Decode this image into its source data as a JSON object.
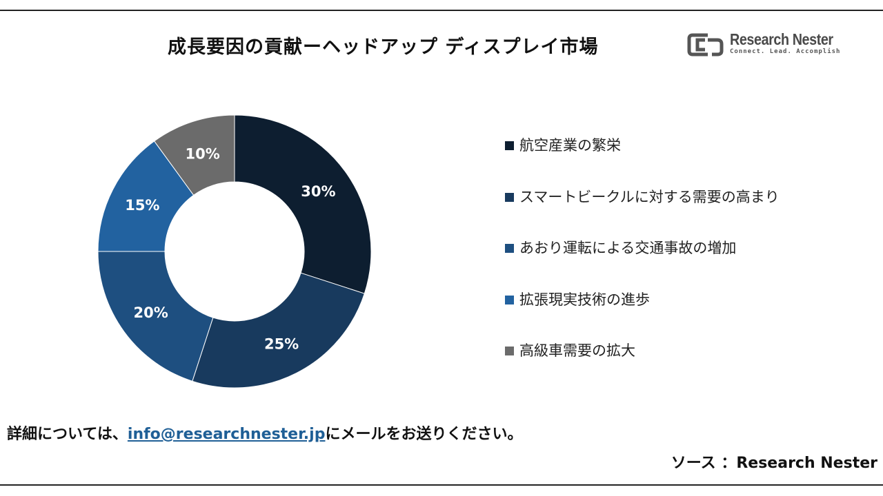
{
  "title": "成長要因の貢献ーヘッドアップ ディスプレイ市場",
  "logo": {
    "name": "Research Nester",
    "tagline": "Connect. Lead. Accomplish"
  },
  "chart_data": {
    "type": "pie",
    "donut": true,
    "legend_position": "right",
    "categories": [
      "航空産業の繁栄",
      "スマートビークルに対する需要の高まり",
      "あおり運転による交通事故の増加",
      "拡張現実技術の進歩",
      "高級車需要の拡大"
    ],
    "values": [
      30,
      25,
      20,
      15,
      10
    ],
    "data_labels": [
      "30%",
      "25%",
      "20%",
      "15%",
      "10%"
    ],
    "colors": [
      "#0d1e30",
      "#183a5e",
      "#1e4f80",
      "#2262a0",
      "#6b6b6b"
    ]
  },
  "footer": {
    "prefix": "詳細については、",
    "email": "info@researchnester.jp",
    "suffix": "にメールをお送りください。"
  },
  "source": "ソース ：Research Nester"
}
